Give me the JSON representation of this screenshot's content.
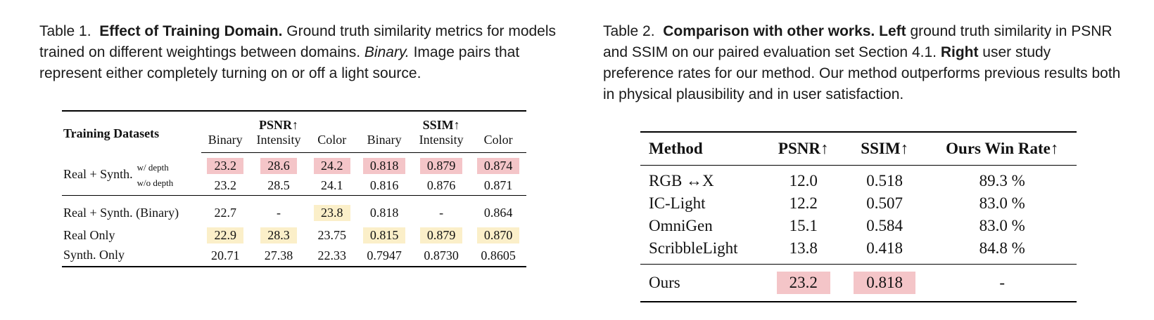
{
  "table1": {
    "caption_label": "Table 1.",
    "caption_title": "Effect of Training Domain.",
    "caption_text_a": " Ground truth similarity metrics for models trained on different weightings between domains. ",
    "caption_italic": "Binary.",
    "caption_text_b": " Image pairs that represent either completely turning on or off a light source.",
    "header_col": "Training Datasets",
    "group_psnr": "PSNR↑",
    "group_ssim": "SSIM↑",
    "subcols": [
      "Binary",
      "Intensity",
      "Color",
      "Binary",
      "Intensity",
      "Color"
    ],
    "rows": [
      {
        "label": "Real + Synth.",
        "sub": "w/ depth",
        "values": [
          "23.2",
          "28.6",
          "24.2",
          "0.818",
          "0.879",
          "0.874"
        ]
      },
      {
        "label": "",
        "sub": "w/o depth",
        "values": [
          "23.2",
          "28.5",
          "24.1",
          "0.816",
          "0.876",
          "0.871"
        ]
      },
      {
        "label": "Real + Synth. (Binary)",
        "sub": "",
        "values": [
          "22.7",
          "-",
          "23.8",
          "0.818",
          "-",
          "0.864"
        ]
      },
      {
        "label": "Real Only",
        "sub": "",
        "values": [
          "22.9",
          "28.3",
          "23.75",
          "0.815",
          "0.879",
          "0.870"
        ]
      },
      {
        "label": "Synth. Only",
        "sub": "",
        "values": [
          "20.71",
          "27.38",
          "22.33",
          "0.7947",
          "0.8730",
          "0.8605"
        ]
      }
    ],
    "highlight_colors": {
      "best": "#f4c5c8",
      "second": "#fbefc9"
    }
  },
  "table2": {
    "caption_label": "Table 2.",
    "caption_title": "Comparison with other works.",
    "caption_left": "Left",
    "caption_text_a": " ground truth similarity in PSNR and SSIM on our paired evaluation set Section 4.1. ",
    "caption_right": "Right",
    "caption_text_b": " user study preference rates for our method. Our method outperforms previous results both in physical plausibility and in user satisfaction.",
    "headers": [
      "Method",
      "PSNR↑",
      "SSIM↑",
      "Ours Win Rate↑"
    ],
    "rows": [
      {
        "method": "RGB ↔X",
        "psnr": "12.0",
        "ssim": "0.518",
        "win": "89.3 %"
      },
      {
        "method": "IC-Light",
        "psnr": "12.2",
        "ssim": "0.507",
        "win": "83.0 %"
      },
      {
        "method": "OmniGen",
        "psnr": "15.1",
        "ssim": "0.584",
        "win": "83.0 %"
      },
      {
        "method": "ScribbleLight",
        "psnr": "13.8",
        "ssim": "0.418",
        "win": "84.8 %"
      }
    ],
    "ours": {
      "method": "Ours",
      "psnr": "23.2",
      "ssim": "0.818",
      "win": "-"
    }
  }
}
